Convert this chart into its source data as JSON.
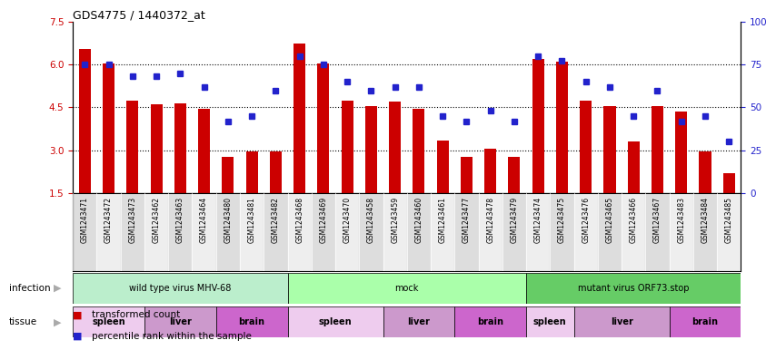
{
  "title": "GDS4775 / 1440372_at",
  "samples": [
    "GSM1243471",
    "GSM1243472",
    "GSM1243473",
    "GSM1243462",
    "GSM1243463",
    "GSM1243464",
    "GSM1243480",
    "GSM1243481",
    "GSM1243482",
    "GSM1243468",
    "GSM1243469",
    "GSM1243470",
    "GSM1243458",
    "GSM1243459",
    "GSM1243460",
    "GSM1243461",
    "GSM1243477",
    "GSM1243478",
    "GSM1243479",
    "GSM1243474",
    "GSM1243475",
    "GSM1243476",
    "GSM1243465",
    "GSM1243466",
    "GSM1243467",
    "GSM1243483",
    "GSM1243484",
    "GSM1243485"
  ],
  "bar_values": [
    6.55,
    6.05,
    4.75,
    4.6,
    4.65,
    4.45,
    2.75,
    2.95,
    2.95,
    6.75,
    6.05,
    4.75,
    4.55,
    4.7,
    4.45,
    3.35,
    2.75,
    3.05,
    2.75,
    6.2,
    6.1,
    4.75,
    4.55,
    3.3,
    4.55,
    4.35,
    2.95,
    2.2
  ],
  "dot_values": [
    75,
    75,
    68,
    68,
    70,
    62,
    42,
    45,
    60,
    80,
    75,
    65,
    60,
    62,
    62,
    45,
    42,
    48,
    42,
    80,
    77,
    65,
    62,
    45,
    60,
    42,
    45,
    30
  ],
  "ylim_left": [
    1.5,
    7.5
  ],
  "ylim_right": [
    0,
    100
  ],
  "yticks_left": [
    1.5,
    3.0,
    4.5,
    6.0,
    7.5
  ],
  "yticks_right": [
    0,
    25,
    50,
    75,
    100
  ],
  "bar_color": "#cc0000",
  "dot_color": "#2222cc",
  "infection_groups": [
    {
      "label": "wild type virus MHV-68",
      "start": 0,
      "end": 9,
      "color": "#bbeecc"
    },
    {
      "label": "mock",
      "start": 9,
      "end": 19,
      "color": "#aaffaa"
    },
    {
      "label": "mutant virus ORF73.stop",
      "start": 19,
      "end": 28,
      "color": "#66cc66"
    }
  ],
  "tissue_groups": [
    {
      "label": "spleen",
      "start": 0,
      "end": 3,
      "color": "#eeccee"
    },
    {
      "label": "liver",
      "start": 3,
      "end": 6,
      "color": "#cc99cc"
    },
    {
      "label": "brain",
      "start": 6,
      "end": 9,
      "color": "#cc66cc"
    },
    {
      "label": "spleen",
      "start": 9,
      "end": 13,
      "color": "#eeccee"
    },
    {
      "label": "liver",
      "start": 13,
      "end": 16,
      "color": "#cc99cc"
    },
    {
      "label": "brain",
      "start": 16,
      "end": 19,
      "color": "#cc66cc"
    },
    {
      "label": "spleen",
      "start": 19,
      "end": 21,
      "color": "#eeccee"
    },
    {
      "label": "liver",
      "start": 21,
      "end": 25,
      "color": "#cc99cc"
    },
    {
      "label": "brain",
      "start": 25,
      "end": 28,
      "color": "#cc66cc"
    }
  ],
  "xtick_bg_even": "#dddddd",
  "xtick_bg_odd": "#eeeeee",
  "plot_bg": "#ffffff",
  "grid_color": "black"
}
